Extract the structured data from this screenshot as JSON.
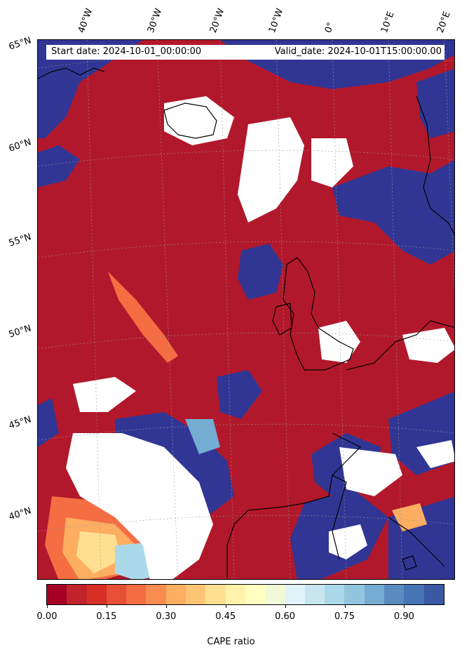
{
  "map": {
    "start_label": "Start date: 2024-10-01_00:00:00",
    "valid_label": "Valid_date: 2024-10-01T15:00:00.00",
    "lon_ticks": [
      "40°W",
      "30°W",
      "20°W",
      "10°W",
      "0°",
      "10°E",
      "20°E"
    ],
    "lat_ticks": [
      "65°N",
      "60°N",
      "55°N",
      "50°N",
      "45°N",
      "40°N"
    ],
    "field_colors": {
      "low": "#b2182b",
      "high": "#313695",
      "mid": "#fee090",
      "missing": "#ffffff",
      "coast": "#000000"
    }
  },
  "colorbar": {
    "title": "CAPE ratio",
    "tick_labels": [
      "0.00",
      "0.15",
      "0.30",
      "0.45",
      "0.60",
      "0.75",
      "0.90"
    ],
    "tick_values": [
      0.0,
      0.15,
      0.3,
      0.45,
      0.6,
      0.75,
      0.9
    ],
    "range": [
      0,
      1
    ],
    "colors": [
      "#a50026",
      "#c0242a",
      "#d73027",
      "#e65036",
      "#f46d43",
      "#f88c51",
      "#fdae61",
      "#fec575",
      "#fee090",
      "#fff3ac",
      "#ffffbf",
      "#f1f9d8",
      "#e0f3f8",
      "#c7e6f0",
      "#abd9e9",
      "#92c5de",
      "#74add1",
      "#5a8bbf",
      "#4575b4",
      "#3a58a3"
    ]
  }
}
